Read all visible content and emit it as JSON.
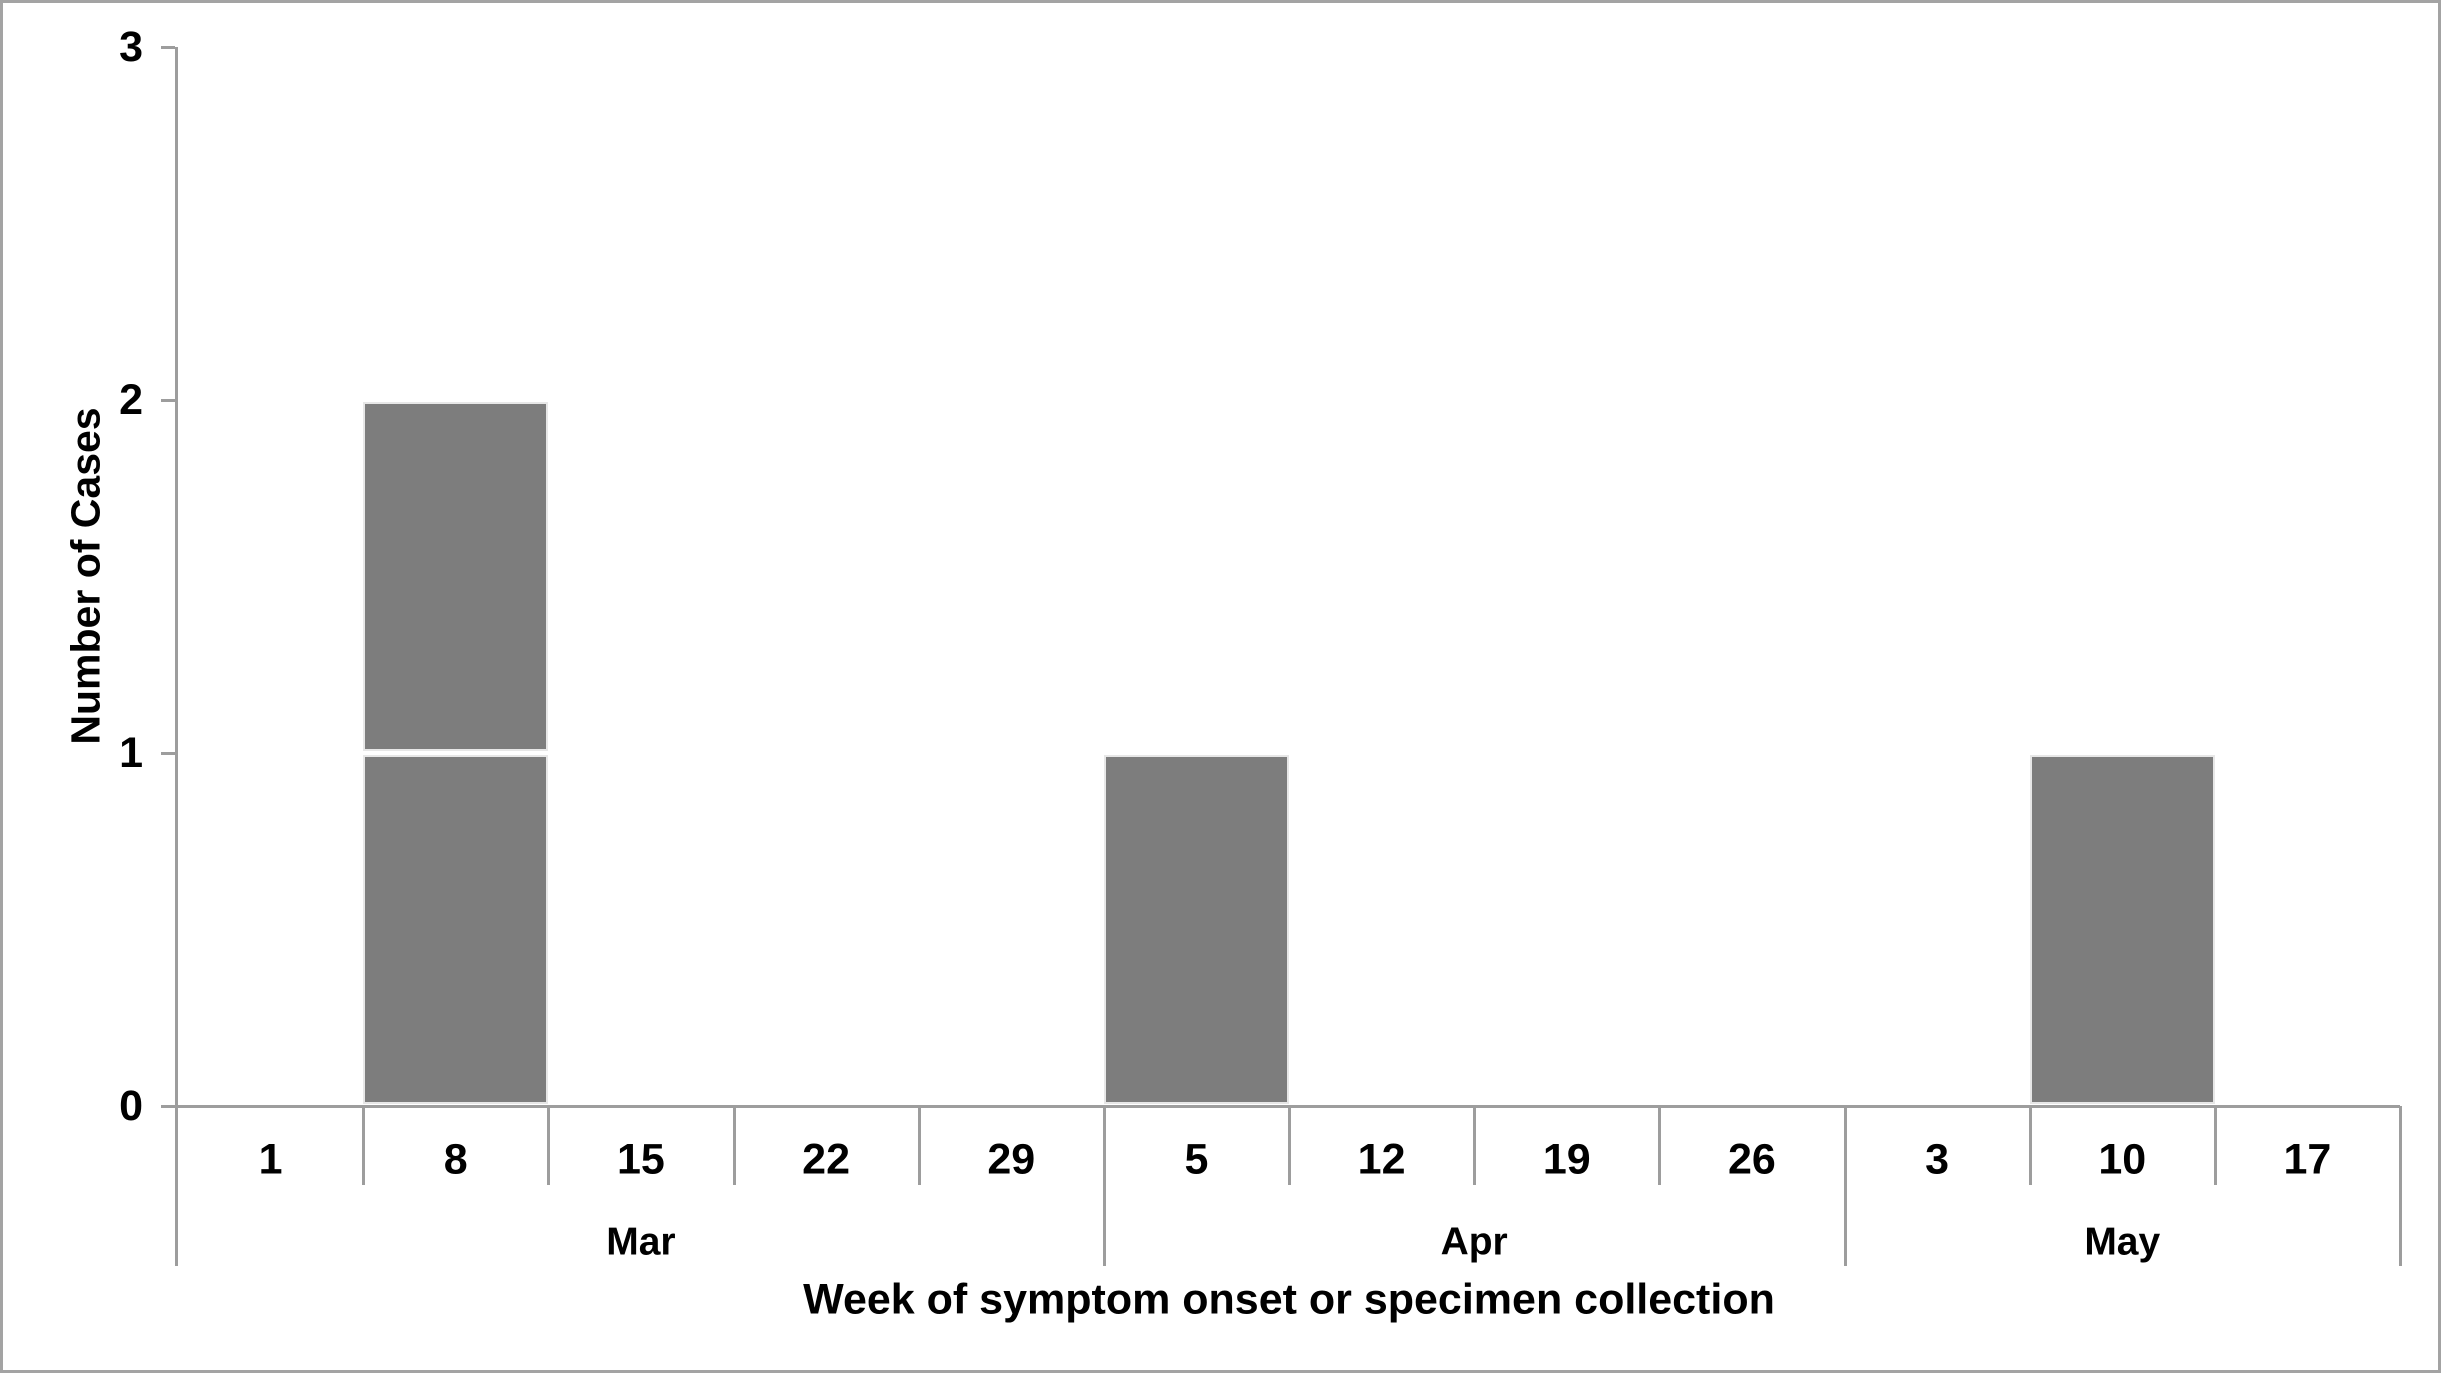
{
  "chart_data": {
    "type": "bar",
    "title": "",
    "xlabel": "Week of symptom onset or specimen collection",
    "ylabel": "Number of Cases",
    "ylim": [
      0,
      3
    ],
    "ytick_labels": [
      "0",
      "1",
      "2",
      "3"
    ],
    "categories": [
      "1",
      "8",
      "15",
      "22",
      "29",
      "5",
      "12",
      "19",
      "26",
      "3",
      "10",
      "17"
    ],
    "values": [
      0,
      2,
      0,
      0,
      0,
      1,
      0,
      0,
      0,
      0,
      1,
      0
    ],
    "month_groups": [
      {
        "label": "Mar",
        "weeks": 5
      },
      {
        "label": "Apr",
        "weeks": 4
      },
      {
        "label": "May",
        "weeks": 3
      }
    ],
    "stacked_unit_boxes": true,
    "legend": "none",
    "grid": "off",
    "colors": {
      "bar_fill": "#7d7d7d",
      "bar_unit_divider": "#ffffff",
      "axis_line": "#9d9d9d",
      "text": "#000000",
      "figure_border": "#a3a3a3",
      "background": "#ffffff"
    }
  }
}
